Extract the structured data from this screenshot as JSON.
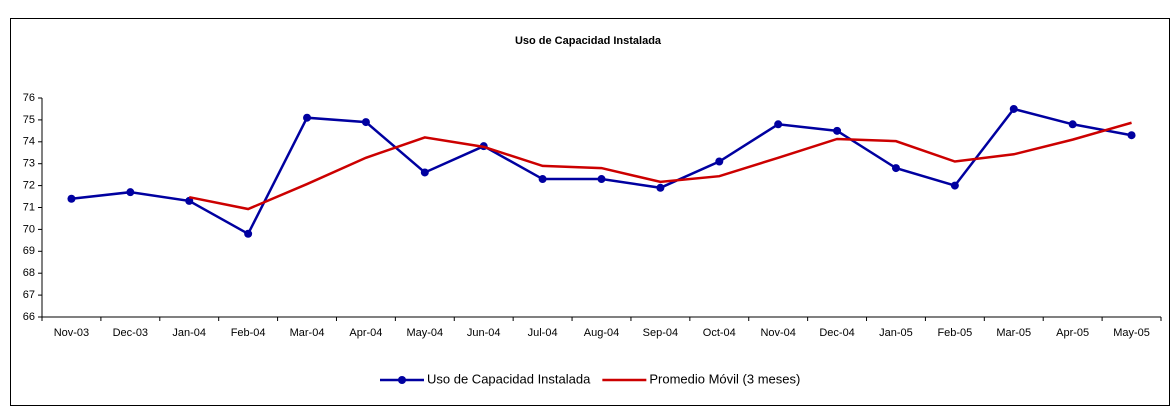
{
  "chart_data": {
    "type": "line",
    "title": "Uso de Capacidad Instalada",
    "categories": [
      "Nov-03",
      "Dec-03",
      "Jan-04",
      "Feb-04",
      "Mar-04",
      "Apr-04",
      "May-04",
      "Jun-04",
      "Jul-04",
      "Aug-04",
      "Sep-04",
      "Oct-04",
      "Nov-04",
      "Dec-04",
      "Jan-05",
      "Feb-05",
      "Mar-05",
      "Apr-05",
      "May-05"
    ],
    "series": [
      {
        "name": "Uso de Capacidad Instalada",
        "color": "#0000a0",
        "marker": "circle",
        "values": [
          71.4,
          71.7,
          71.3,
          69.8,
          75.1,
          74.9,
          72.6,
          73.8,
          72.3,
          72.3,
          71.9,
          73.1,
          74.8,
          74.5,
          72.8,
          72.0,
          75.5,
          74.8,
          74.3
        ]
      },
      {
        "name": "Promedio Móvil (3 meses)",
        "color": "#cc0000",
        "values": [
          null,
          null,
          71.47,
          70.93,
          72.07,
          73.27,
          74.2,
          73.77,
          72.9,
          72.8,
          72.17,
          72.43,
          73.27,
          74.13,
          74.03,
          73.1,
          73.43,
          74.1,
          74.87
        ]
      }
    ],
    "ylim": [
      66,
      76
    ],
    "yticks": [
      66,
      67,
      68,
      69,
      70,
      71,
      72,
      73,
      74,
      75,
      76
    ],
    "legend": "bottom"
  }
}
